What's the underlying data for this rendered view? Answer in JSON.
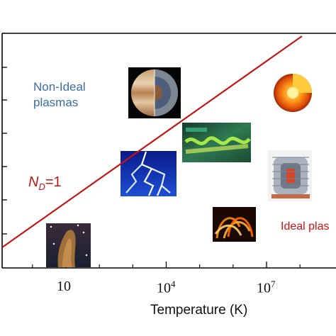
{
  "chart_data": {
    "type": "line",
    "xlabel": "Temperature (K)",
    "x_scale": "log",
    "x_ticks": [
      {
        "value": 10,
        "label": "10"
      },
      {
        "value": 10000,
        "base": "10",
        "exp": "4"
      },
      {
        "value": 10000000,
        "base": "10",
        "exp": "7"
      }
    ],
    "series": [
      {
        "name": "N_D=1",
        "color": "#c41515",
        "style": "solid"
      }
    ],
    "annotations": {
      "nd_symbol": "N",
      "nd_subscript": "D",
      "nd_rest": "=1",
      "non_ideal": "Non-Ideal plasmas",
      "ideal": "Ideal plas"
    },
    "images": [
      "jupiter-interior",
      "sun-interior",
      "laser-plasma-waves",
      "lightning",
      "tokamak-reactor",
      "solar-flare",
      "eagle-nebula-pillar"
    ],
    "grid": false
  },
  "colors": {
    "line": "#c41515",
    "non_ideal_text": "#3a6ea5",
    "ideal_text": "#c41515"
  }
}
